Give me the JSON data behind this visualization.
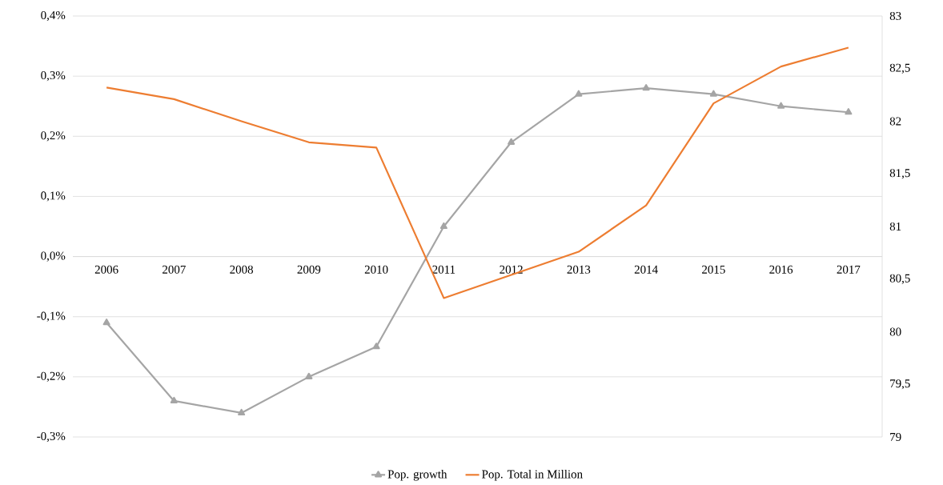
{
  "chart_data": {
    "type": "line",
    "categories": [
      "2006",
      "2007",
      "2008",
      "2009",
      "2010",
      "2011",
      "2012",
      "2013",
      "2014",
      "2015",
      "2016",
      "2017"
    ],
    "series": [
      {
        "name": "Pop. growth",
        "color": "#a5a5a5",
        "marker": "triangle",
        "values": [
          -0.11,
          -0.24,
          -0.26,
          -0.2,
          -0.15,
          0.05,
          0.19,
          0.27,
          0.28,
          0.27,
          0.25,
          0.24
        ]
      },
      {
        "name": "Pop. Total in Million",
        "color": "#ed7d31",
        "axis": "y2",
        "values": [
          82.32,
          82.21,
          82.0,
          81.8,
          81.75,
          80.32,
          80.54,
          80.76,
          81.2,
          82.17,
          82.52,
          82.7
        ]
      }
    ],
    "ylim": [
      -0.3,
      0.4
    ],
    "yticks": [
      {
        "value": -0.3,
        "label": "-0,3%"
      },
      {
        "value": -0.2,
        "label": "-0,2%"
      },
      {
        "value": -0.1,
        "label": "-0,1%"
      },
      {
        "value": 0,
        "label": "0,0%"
      },
      {
        "value": 0.1,
        "label": "0,1%"
      },
      {
        "value": 0.2,
        "label": "0,2%"
      },
      {
        "value": 0.3,
        "label": "0,3%"
      },
      {
        "value": 0.4,
        "label": "0,4%"
      }
    ],
    "y2lim": [
      79,
      83
    ],
    "y2ticks": [
      79,
      {
        "value": 79.5,
        "label": "79,5"
      },
      80,
      {
        "value": 80.5,
        "label": "80,5"
      },
      81,
      {
        "value": 81.5,
        "label": "81,5"
      },
      82,
      {
        "value": 82.5,
        "label": "82,5"
      },
      83
    ],
    "grid": "y",
    "legend": "bottom"
  }
}
